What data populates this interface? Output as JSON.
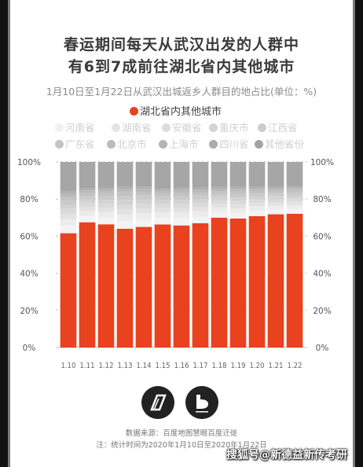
{
  "title_line1": "春运期间每天从武汉出发的人群中",
  "title_line2": "有6到7成前往湖北省内其他城市",
  "source": "数据来源：百度地图慧眼百度迁徙",
  "note": "注：统计时间为2020年1月10日至2020年1月22日",
  "watermark": "搜狐号@新德益新传考研",
  "colors": {
    "hubei": "#e8421f",
    "gray_top": "#a6a6a6"
  },
  "chart_data": {
    "type": "bar",
    "stacked": true,
    "title": "1月10日至1月22日从武汉出城返乡人群目的地占比(单位：%)",
    "categories": [
      "1.10",
      "1.11",
      "1.12",
      "1.13",
      "1.14",
      "1.15",
      "1.16",
      "1.17",
      "1.18",
      "1.19",
      "1.20",
      "1.21",
      "1.22"
    ],
    "yticks": [
      "0%",
      "20%",
      "40%",
      "60%",
      "80%",
      "100%"
    ],
    "ylim": [
      0,
      100
    ],
    "grid": true,
    "legend": [
      {
        "name": "湖北省内其他城市",
        "color": "#e8421f"
      },
      {
        "name": "河南省",
        "color": "#f3f3f3"
      },
      {
        "name": "湖南省",
        "color": "#ececec"
      },
      {
        "name": "安徽省",
        "color": "#e2e2e2"
      },
      {
        "name": "重庆市",
        "color": "#dadada"
      },
      {
        "name": "江西省",
        "color": "#d2d2d2"
      },
      {
        "name": "广东省",
        "color": "#cacaca"
      },
      {
        "name": "北京市",
        "color": "#c2c2c2"
      },
      {
        "name": "上海市",
        "color": "#bababa"
      },
      {
        "name": "四川省",
        "color": "#b1b1b1"
      },
      {
        "name": "其他省份",
        "color": "#a6a6a6"
      }
    ],
    "series": [
      {
        "name": "湖北省内其他城市",
        "values": [
          61.6,
          67.5,
          66.4,
          64.0,
          65.0,
          66.3,
          65.8,
          67.0,
          70.0,
          69.5,
          70.8,
          71.8,
          72.1
        ]
      },
      {
        "name": "河南省",
        "values": [
          4.2,
          3.3,
          3.6,
          4.2,
          4.0,
          3.6,
          3.8,
          3.5,
          3.0,
          3.0,
          2.8,
          2.6,
          2.6
        ]
      },
      {
        "name": "湖南省",
        "values": [
          3.5,
          2.8,
          3.0,
          3.5,
          3.3,
          3.0,
          3.1,
          2.9,
          2.5,
          2.5,
          2.4,
          2.2,
          2.2
        ]
      },
      {
        "name": "安徽省",
        "values": [
          2.8,
          2.3,
          2.4,
          2.8,
          2.7,
          2.4,
          2.5,
          2.4,
          2.0,
          2.1,
          1.9,
          1.8,
          1.8
        ]
      },
      {
        "name": "重庆市",
        "values": [
          2.6,
          2.1,
          2.2,
          2.6,
          2.5,
          2.2,
          2.3,
          2.2,
          1.9,
          1.9,
          1.8,
          1.7,
          1.7
        ]
      },
      {
        "name": "江西省",
        "values": [
          2.4,
          1.9,
          2.0,
          2.4,
          2.3,
          2.0,
          2.1,
          2.0,
          1.8,
          1.8,
          1.7,
          1.6,
          1.6
        ]
      },
      {
        "name": "广东省",
        "values": [
          2.2,
          1.8,
          1.9,
          2.2,
          2.1,
          1.9,
          2.0,
          1.9,
          1.6,
          1.7,
          1.5,
          1.5,
          1.5
        ]
      },
      {
        "name": "北京市",
        "values": [
          1.9,
          1.6,
          1.7,
          1.9,
          1.8,
          1.7,
          1.7,
          1.6,
          1.4,
          1.5,
          1.4,
          1.3,
          1.3
        ]
      },
      {
        "name": "上海市",
        "values": [
          1.6,
          1.4,
          1.4,
          1.6,
          1.6,
          1.4,
          1.5,
          1.4,
          1.2,
          1.3,
          1.2,
          1.1,
          1.1
        ]
      },
      {
        "name": "四川省",
        "values": [
          1.5,
          1.3,
          1.3,
          1.5,
          1.5,
          1.3,
          1.4,
          1.3,
          1.1,
          1.2,
          1.1,
          1.0,
          1.0
        ]
      },
      {
        "name": "其他省份",
        "values": [
          15.7,
          14.0,
          14.1,
          13.3,
          13.2,
          14.2,
          13.8,
          13.8,
          13.5,
          13.5,
          13.4,
          13.4,
          13.1
        ]
      }
    ]
  }
}
